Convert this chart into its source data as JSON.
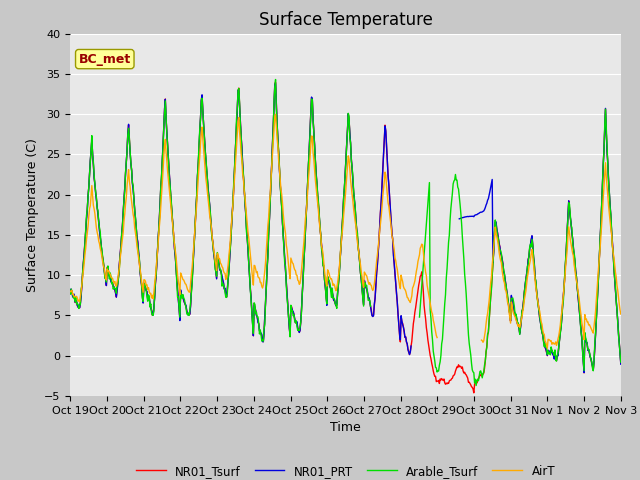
{
  "title": "Surface Temperature",
  "xlabel": "Time",
  "ylabel": "Surface Temperature (C)",
  "ylim": [
    -5,
    40
  ],
  "x_tick_labels": [
    "Oct 19",
    "Oct 20",
    "Oct 21",
    "Oct 22",
    "Oct 23",
    "Oct 24",
    "Oct 25",
    "Oct 26",
    "Oct 27",
    "Oct 28",
    "Oct 29",
    "Oct 30",
    "Oct 31",
    "Nov 1",
    "Nov 2",
    "Nov 3"
  ],
  "legend_labels": [
    "NR01_Tsurf",
    "NR01_PRT",
    "Arable_Tsurf",
    "AirT"
  ],
  "line_colors": [
    "#ff0000",
    "#0000dd",
    "#00dd00",
    "#ffaa00"
  ],
  "annotation_text": "BC_met",
  "annotation_color": "#990000",
  "annotation_bg": "#ffff99",
  "title_fontsize": 12,
  "label_fontsize": 9,
  "tick_fontsize": 8,
  "fig_bg": "#c8c8c8",
  "plot_bg": "#e8e8e8"
}
